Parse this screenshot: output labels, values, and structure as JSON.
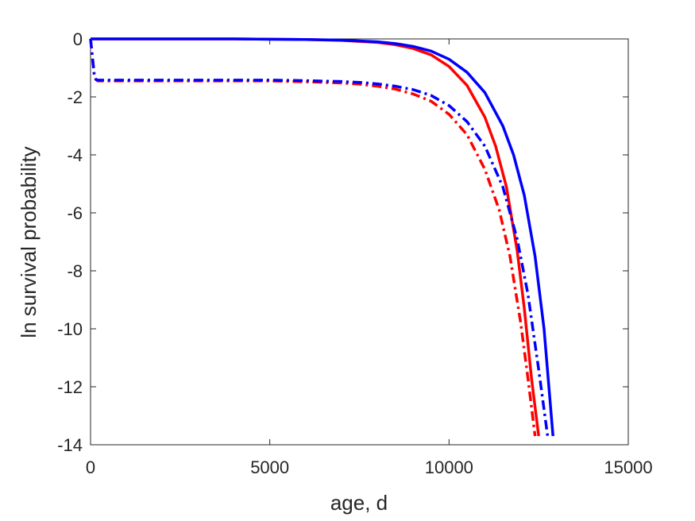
{
  "chart_data": {
    "type": "line",
    "title": "",
    "xlabel": "age, d",
    "ylabel": "ln survival probability",
    "xlim": [
      0,
      15000
    ],
    "ylim": [
      -14,
      0
    ],
    "xticks": [
      0,
      5000,
      10000,
      15000
    ],
    "xtick_labels": [
      "0",
      "5000",
      "10000",
      "15000"
    ],
    "yticks": [
      0,
      -2,
      -4,
      -6,
      -8,
      -10,
      -12,
      -14
    ],
    "ytick_labels": [
      "0",
      "-2",
      "-4",
      "-6",
      "-8",
      "-10",
      "-12",
      "-14"
    ],
    "grid": false,
    "legend": "none",
    "series": [
      {
        "color": "#ff0000",
        "style": "solid",
        "x": [
          0,
          2000,
          4000,
          6000,
          7000,
          8000,
          8500,
          9000,
          9500,
          10000,
          10500,
          11000,
          11300,
          11600,
          11900,
          12100,
          12300,
          12500
        ],
        "y": [
          0,
          0,
          0,
          -0.02,
          -0.05,
          -0.12,
          -0.2,
          -0.33,
          -0.55,
          -0.95,
          -1.6,
          -2.7,
          -3.7,
          -5.1,
          -7.3,
          -9.3,
          -11.7,
          -13.7
        ]
      },
      {
        "color": "#0000ff",
        "style": "solid",
        "x": [
          0,
          2000,
          4000,
          6000,
          7000,
          8000,
          8500,
          9000,
          9500,
          10000,
          10500,
          11000,
          11500,
          11800,
          12100,
          12400,
          12650,
          12900
        ],
        "y": [
          0,
          0,
          0,
          -0.02,
          -0.04,
          -0.1,
          -0.16,
          -0.26,
          -0.42,
          -0.7,
          -1.15,
          -1.85,
          -3.0,
          -4.0,
          -5.4,
          -7.5,
          -10.0,
          -13.7
        ]
      },
      {
        "color": "#ff0000",
        "style": "dashdot",
        "x": [
          0,
          50,
          100,
          150,
          200,
          1000,
          3000,
          5000,
          6000,
          7000,
          7500,
          8000,
          8500,
          9000,
          9500,
          10000,
          10500,
          11000,
          11400,
          11700,
          12000,
          12200,
          12400
        ],
        "y": [
          0,
          -0.6,
          -1.2,
          -1.4,
          -1.45,
          -1.45,
          -1.45,
          -1.45,
          -1.48,
          -1.52,
          -1.56,
          -1.63,
          -1.73,
          -1.9,
          -2.15,
          -2.6,
          -3.3,
          -4.5,
          -5.9,
          -7.5,
          -9.8,
          -11.7,
          -13.7
        ]
      },
      {
        "color": "#0000ff",
        "style": "dashdot",
        "x": [
          0,
          50,
          100,
          150,
          200,
          1000,
          3000,
          5000,
          6000,
          7000,
          7500,
          8000,
          8500,
          9000,
          9500,
          10000,
          10500,
          11000,
          11500,
          11900,
          12200,
          12500,
          12750
        ],
        "y": [
          0,
          -0.6,
          -1.2,
          -1.4,
          -1.42,
          -1.42,
          -1.42,
          -1.42,
          -1.44,
          -1.47,
          -1.5,
          -1.55,
          -1.63,
          -1.75,
          -1.95,
          -2.3,
          -2.85,
          -3.7,
          -5.1,
          -6.9,
          -8.8,
          -11.4,
          -13.7
        ]
      }
    ]
  }
}
